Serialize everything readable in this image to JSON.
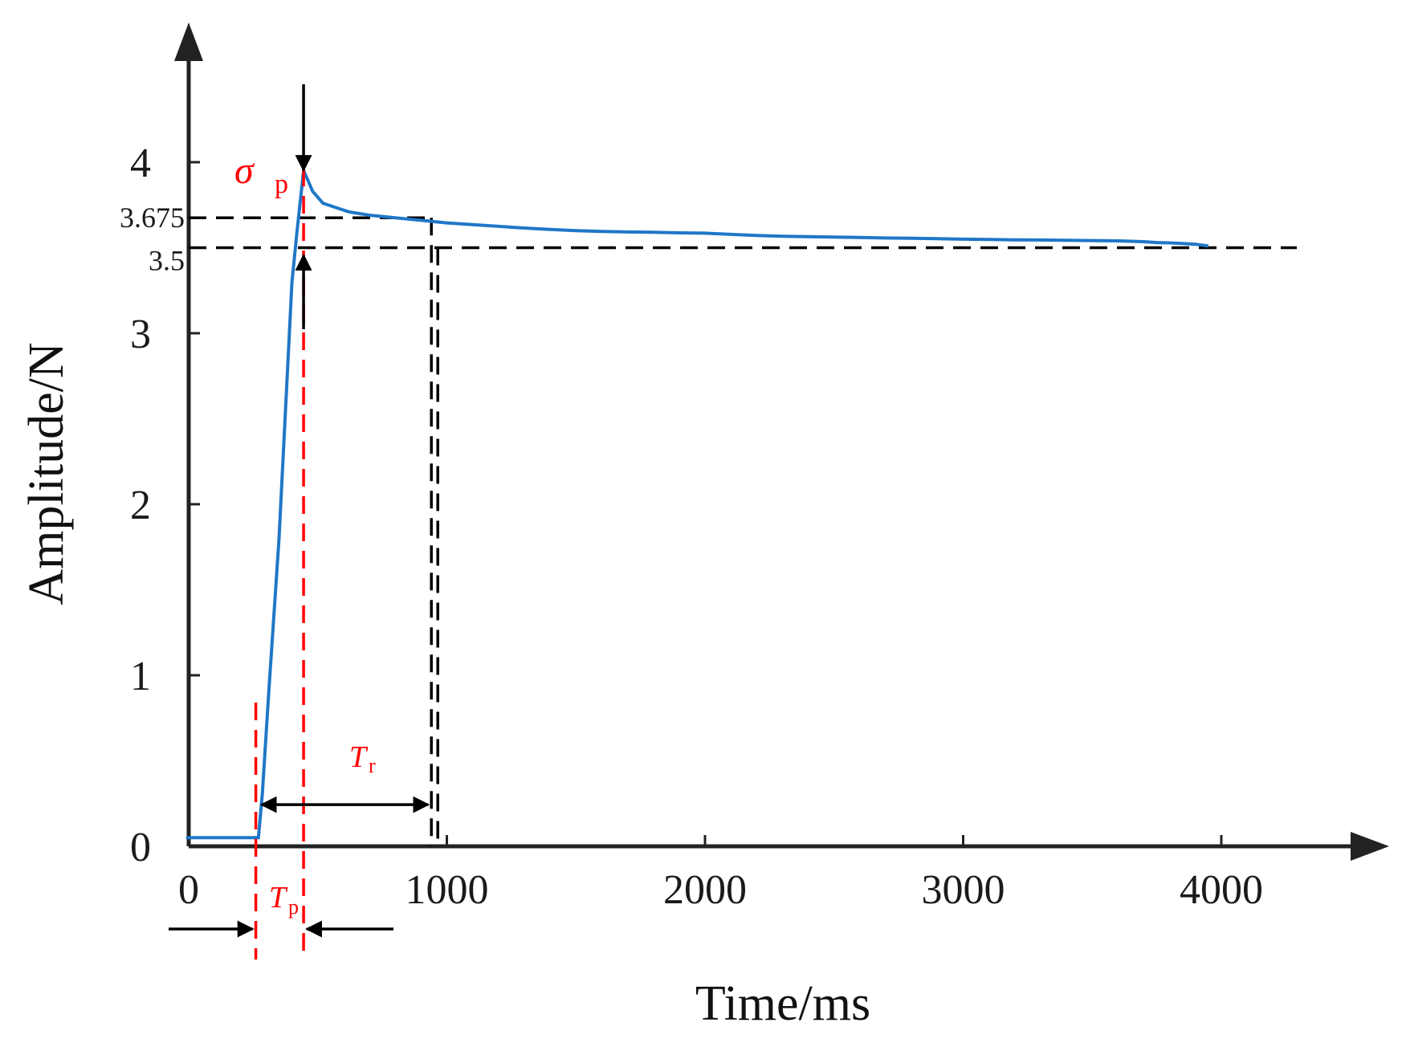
{
  "chart_data": {
    "type": "line",
    "title": "",
    "xlabel": "Time/ms",
    "ylabel": "Amplitude/N",
    "xlim": [
      -20,
      4300
    ],
    "ylim": [
      0,
      4.5
    ],
    "xticks": [
      0,
      1000,
      2000,
      3000,
      4000
    ],
    "yticks": [
      0,
      1,
      2,
      3,
      4
    ],
    "x_tick_labels": [
      "0",
      "1000",
      "2000",
      "3000",
      "4000"
    ],
    "y_tick_labels": [
      "0",
      "1",
      "2",
      "3",
      "4"
    ],
    "grid": false,
    "line_color": "#1f77c8",
    "reference_color": "#ff0000",
    "series": [
      {
        "name": "Amplitude",
        "x": [
          -10,
          250,
          270,
          285,
          310,
          350,
          400,
          420,
          445,
          460,
          480,
          520,
          560,
          620,
          700,
          800,
          900,
          1000,
          1100,
          1200,
          1300,
          1400,
          1500,
          1600,
          1700,
          1800,
          1900,
          2000,
          2100,
          2200,
          2300,
          2400,
          2500,
          2600,
          2700,
          2800,
          2900,
          3000,
          3100,
          3200,
          3300,
          3400,
          3500,
          3600,
          3700,
          3750,
          3800,
          3850,
          3900,
          3950
        ],
        "values": [
          0.05,
          0.05,
          0.05,
          0.3,
          0.9,
          1.8,
          3.3,
          3.6,
          3.95,
          3.9,
          3.83,
          3.76,
          3.74,
          3.71,
          3.69,
          3.675,
          3.66,
          3.645,
          3.635,
          3.625,
          3.615,
          3.607,
          3.6,
          3.595,
          3.592,
          3.59,
          3.587,
          3.585,
          3.578,
          3.572,
          3.567,
          3.565,
          3.562,
          3.56,
          3.557,
          3.555,
          3.553,
          3.55,
          3.548,
          3.546,
          3.545,
          3.543,
          3.542,
          3.54,
          3.535,
          3.53,
          3.528,
          3.525,
          3.52,
          3.51
        ]
      }
    ],
    "reference_lines": [
      {
        "name": "3.675",
        "y": 3.675,
        "style": "dashed"
      },
      {
        "name": "3.5",
        "y": 3.5,
        "style": "dashed"
      }
    ],
    "annotations": {
      "sigma_p": {
        "symbol": "σ",
        "sub": "p",
        "x": 445
      },
      "t_r": {
        "symbol": "T",
        "sub": "r",
        "x_start": 270,
        "x_end": 940,
        "y": 0.3
      },
      "t_p": {
        "symbol": "T",
        "sub": "p",
        "x_start": 260,
        "x_end": 445
      },
      "settling_time_x": 940
    },
    "ref_labels": [
      "3.675",
      "3.5"
    ]
  }
}
